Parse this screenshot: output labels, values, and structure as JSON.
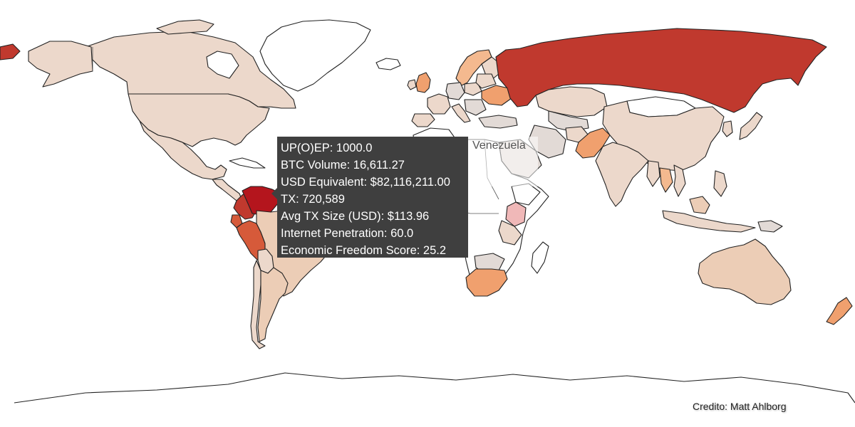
{
  "map": {
    "hovered_country": "Venezuela",
    "colors": {
      "very_high": "#b4151d",
      "high": "#c0392e",
      "medium_high": "#d65a3a",
      "medium": "#f0a06e",
      "low_medium": "#f4b98f",
      "low": "#eccdb6",
      "very_low": "#ecd8cb",
      "minimal": "#e2dad6",
      "highlight_pink": "#f0b8b8",
      "no_data": "#ffffff"
    }
  },
  "tooltip": {
    "upoep": "UP(O)EP: 1000.0",
    "btc_volume": "BTC Volume: 16,611.27",
    "usd_equivalent": "USD Equivalent: $82,116,211.00",
    "tx": "TX: 720,589",
    "avg_tx_size": "Avg TX Size (USD): $113.96",
    "internet_penetration": "Internet Penetration: 60.0",
    "economic_freedom": "Economic Freedom Score: 25.2"
  },
  "credit": "Credito: Matt Ahlborg"
}
